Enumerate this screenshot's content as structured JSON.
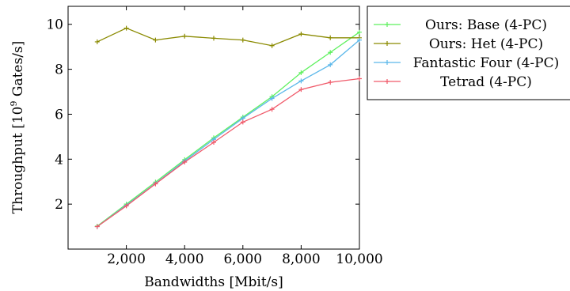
{
  "chart_data": {
    "type": "line",
    "title": "",
    "xlabel": "Bandwidths [Mbit/s]",
    "ylabel": "Throughput [10^9 Gates/s]",
    "ylabel_parts": {
      "pre": "Throughput [10",
      "sup": "9",
      "post": " Gates/s]"
    },
    "xlim": [
      0,
      10000
    ],
    "ylim": [
      0,
      10.8
    ],
    "x_ticks": [
      2000,
      4000,
      6000,
      8000,
      10000
    ],
    "x_tick_labels": [
      "2,000",
      "4,000",
      "6,000",
      "8,000",
      "10,000"
    ],
    "y_ticks": [
      2,
      4,
      6,
      8,
      10
    ],
    "y_tick_labels": [
      "2",
      "4",
      "6",
      "8",
      "10"
    ],
    "grid": false,
    "legend_position": "top-right",
    "x": [
      1000,
      2000,
      3000,
      4000,
      5000,
      6000,
      7000,
      8000,
      9000,
      10000
    ],
    "series": [
      {
        "name": "Ours: Base (4-PC)",
        "color": "#5ef05e",
        "values": [
          1.02,
          2.0,
          2.98,
          3.98,
          4.95,
          5.87,
          6.78,
          7.85,
          8.75,
          9.65
        ]
      },
      {
        "name": "Ours: Het (4-PC)",
        "color": "#8a8a00",
        "values": [
          9.22,
          9.83,
          9.3,
          9.47,
          9.38,
          9.3,
          9.05,
          9.57,
          9.4,
          9.4
        ]
      },
      {
        "name": "Fantastic Four (4-PC)",
        "color": "#5cb8ea",
        "values": [
          1.0,
          1.95,
          2.92,
          3.92,
          4.88,
          5.82,
          6.7,
          7.48,
          8.2,
          9.3
        ]
      },
      {
        "name": "Tetrad (4-PC)",
        "color": "#f05a6a",
        "values": [
          1.0,
          1.92,
          2.9,
          3.87,
          4.75,
          5.65,
          6.22,
          7.1,
          7.42,
          7.58
        ]
      }
    ]
  }
}
